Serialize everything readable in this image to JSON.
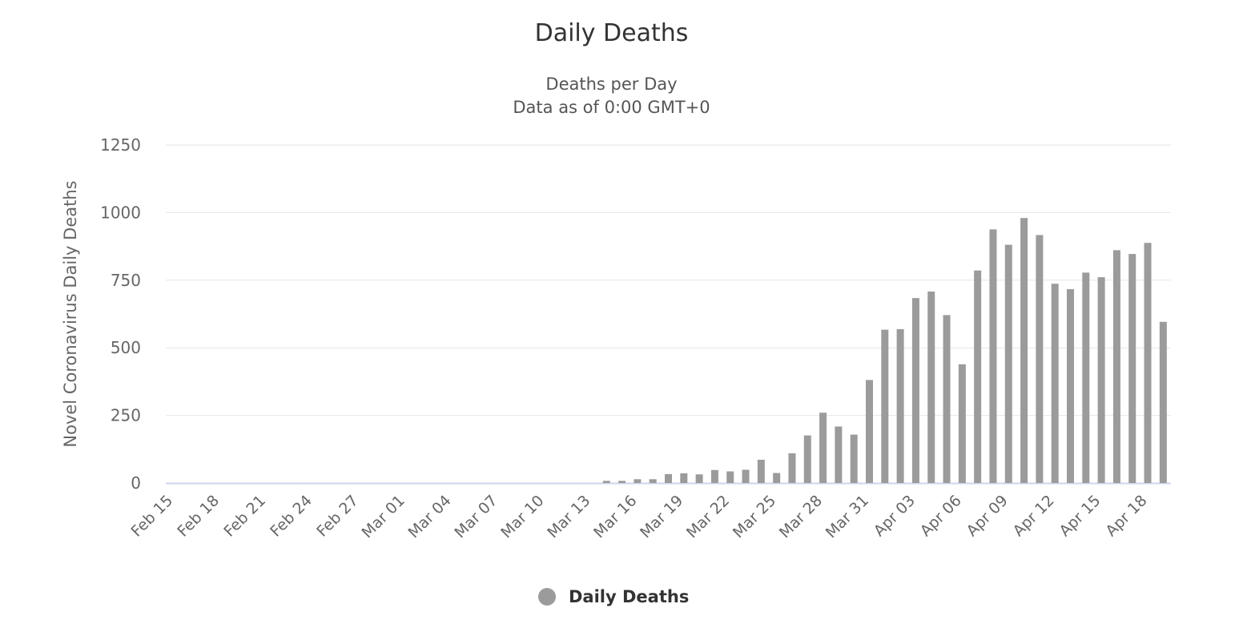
{
  "colors": {
    "bar": "#9b9b9b",
    "grid": "#e6e6e6",
    "axis": "#ccd6eb",
    "text": "#666666"
  },
  "chart_data": {
    "type": "bar",
    "title": "Daily Deaths",
    "subtitle": [
      "Deaths per Day",
      "Data as of 0:00 GMT+0"
    ],
    "ylabel": "Novel Coronavirus Daily Deaths",
    "xlabel": "",
    "ylim": [
      0,
      1250
    ],
    "yticks": [
      0,
      250,
      500,
      750,
      1000,
      1250
    ],
    "grid": true,
    "legend": {
      "position": "bottom-center",
      "entries": [
        "Daily Deaths"
      ]
    },
    "categories": [
      "Feb 15",
      "Feb 16",
      "Feb 17",
      "Feb 18",
      "Feb 19",
      "Feb 20",
      "Feb 21",
      "Feb 22",
      "Feb 23",
      "Feb 24",
      "Feb 25",
      "Feb 26",
      "Feb 27",
      "Feb 28",
      "Feb 29",
      "Mar 01",
      "Mar 02",
      "Mar 03",
      "Mar 04",
      "Mar 05",
      "Mar 06",
      "Mar 07",
      "Mar 08",
      "Mar 09",
      "Mar 10",
      "Mar 11",
      "Mar 12",
      "Mar 13",
      "Mar 14",
      "Mar 15",
      "Mar 16",
      "Mar 17",
      "Mar 18",
      "Mar 19",
      "Mar 20",
      "Mar 21",
      "Mar 22",
      "Mar 23",
      "Mar 24",
      "Mar 25",
      "Mar 26",
      "Mar 27",
      "Mar 28",
      "Mar 29",
      "Mar 30",
      "Mar 31",
      "Apr 01",
      "Apr 02",
      "Apr 03",
      "Apr 04",
      "Apr 05",
      "Apr 06",
      "Apr 07",
      "Apr 08",
      "Apr 09",
      "Apr 10",
      "Apr 11",
      "Apr 12",
      "Apr 13",
      "Apr 14",
      "Apr 15",
      "Apr 16",
      "Apr 17",
      "Apr 18",
      "Apr 19"
    ],
    "xtick_labels": [
      "Feb 15",
      "Feb 18",
      "Feb 21",
      "Feb 24",
      "Feb 27",
      "Mar 01",
      "Mar 04",
      "Mar 07",
      "Mar 10",
      "Mar 13",
      "Mar 16",
      "Mar 19",
      "Mar 22",
      "Mar 25",
      "Mar 28",
      "Mar 31",
      "Apr 03",
      "Apr 06",
      "Apr 09",
      "Apr 12",
      "Apr 15",
      "Apr 18"
    ],
    "series": [
      {
        "name": "Daily Deaths",
        "values": [
          0,
          0,
          0,
          0,
          0,
          0,
          0,
          0,
          0,
          0,
          0,
          0,
          0,
          0,
          0,
          0,
          0,
          0,
          0,
          0,
          0,
          0,
          0,
          0,
          0,
          0,
          0,
          0,
          8,
          8,
          14,
          14,
          33,
          36,
          32,
          48,
          43,
          49,
          86,
          37,
          110,
          176,
          260,
          209,
          179,
          381,
          567,
          569,
          684,
          708,
          621,
          439,
          786,
          938,
          881,
          980,
          917,
          737,
          717,
          778,
          761,
          861,
          847,
          888,
          596
        ]
      }
    ]
  }
}
